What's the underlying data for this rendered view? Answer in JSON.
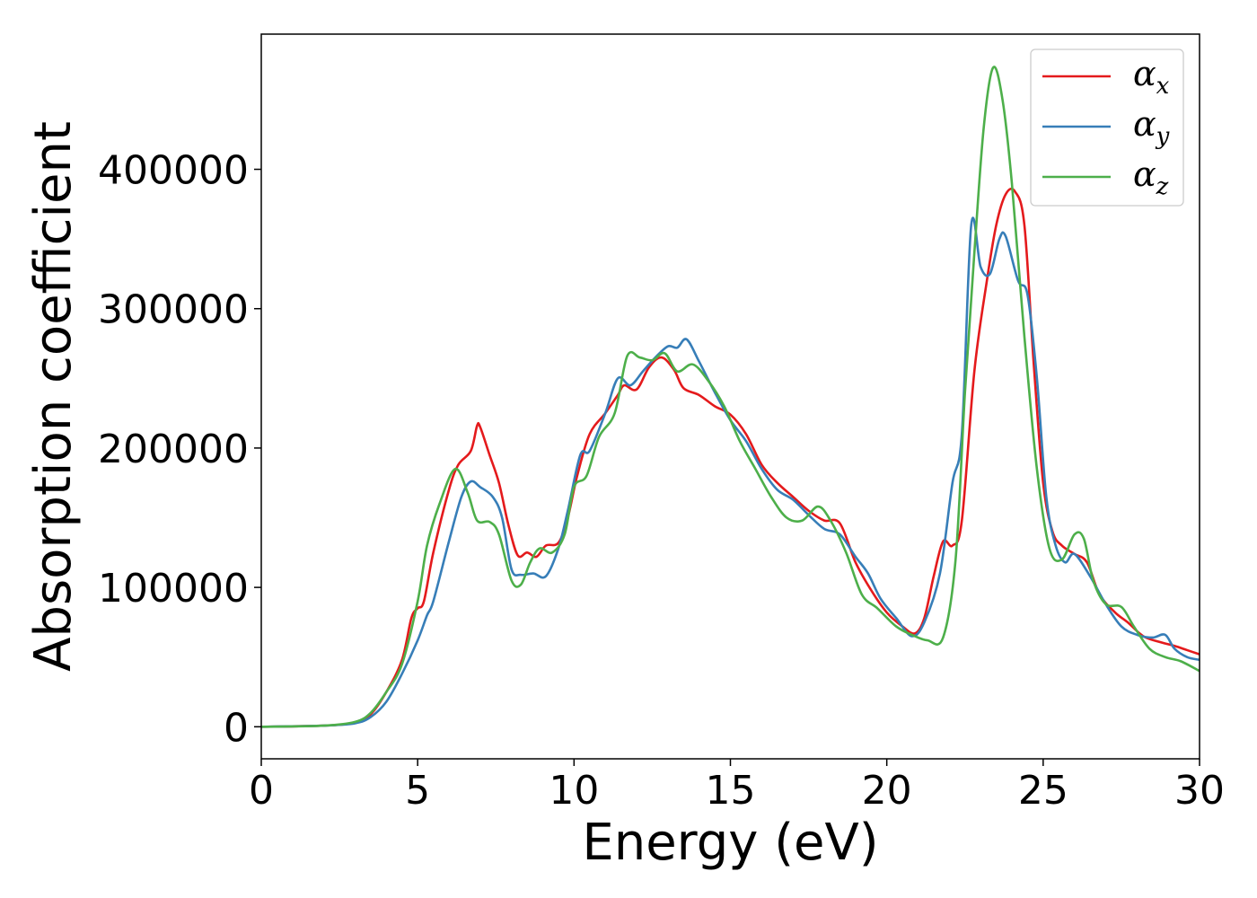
{
  "chart_data": {
    "type": "line",
    "xlabel": "Energy (eV)",
    "ylabel": "Absorption coefficient",
    "xlim": [
      0,
      30
    ],
    "ylim": [
      -23000,
      497000
    ],
    "xticks": [
      0,
      5,
      10,
      15,
      20,
      25,
      30
    ],
    "xtick_labels": [
      "0",
      "5",
      "10",
      "15",
      "20",
      "25",
      "30"
    ],
    "yticks": [
      0,
      100000,
      200000,
      300000,
      400000
    ],
    "ytick_labels": [
      "0",
      "100000",
      "200000",
      "300000",
      "400000"
    ],
    "grid": false,
    "legend_position": "top-right",
    "series": [
      {
        "name": "α",
        "subscript": "x",
        "color": "#e41a1c",
        "points": [
          [
            0,
            0
          ],
          [
            2,
            800
          ],
          [
            3,
            3000
          ],
          [
            3.5,
            9000
          ],
          [
            4,
            25000
          ],
          [
            4.5,
            48000
          ],
          [
            4.8,
            78000
          ],
          [
            5,
            85000
          ],
          [
            5.2,
            90000
          ],
          [
            5.5,
            125000
          ],
          [
            6,
            170000
          ],
          [
            6.3,
            188000
          ],
          [
            6.7,
            198000
          ],
          [
            6.9,
            216000
          ],
          [
            7,
            215000
          ],
          [
            7.3,
            195000
          ],
          [
            7.6,
            175000
          ],
          [
            7.9,
            145000
          ],
          [
            8.2,
            123000
          ],
          [
            8.5,
            125000
          ],
          [
            8.8,
            122000
          ],
          [
            9.1,
            130000
          ],
          [
            9.5,
            132000
          ],
          [
            9.8,
            150000
          ],
          [
            10.1,
            180000
          ],
          [
            10.5,
            210000
          ],
          [
            11,
            225000
          ],
          [
            11.4,
            238000
          ],
          [
            11.6,
            245000
          ],
          [
            12,
            242000
          ],
          [
            12.4,
            258000
          ],
          [
            12.8,
            265000
          ],
          [
            13.2,
            256000
          ],
          [
            13.5,
            243000
          ],
          [
            14,
            238000
          ],
          [
            14.5,
            230000
          ],
          [
            15,
            224000
          ],
          [
            15.5,
            210000
          ],
          [
            16,
            188000
          ],
          [
            16.5,
            175000
          ],
          [
            17,
            165000
          ],
          [
            17.5,
            155000
          ],
          [
            18,
            148000
          ],
          [
            18.5,
            146000
          ],
          [
            19,
            118000
          ],
          [
            19.5,
            98000
          ],
          [
            20,
            82000
          ],
          [
            20.5,
            72000
          ],
          [
            20.9,
            67000
          ],
          [
            21.2,
            78000
          ],
          [
            21.5,
            108000
          ],
          [
            21.8,
            133000
          ],
          [
            22.1,
            130000
          ],
          [
            22.4,
            148000
          ],
          [
            22.8,
            255000
          ],
          [
            23.2,
            320000
          ],
          [
            23.5,
            360000
          ],
          [
            23.8,
            382000
          ],
          [
            24.1,
            384000
          ],
          [
            24.4,
            360000
          ],
          [
            24.7,
            260000
          ],
          [
            25,
            175000
          ],
          [
            25.3,
            140000
          ],
          [
            25.6,
            130000
          ],
          [
            26,
            124000
          ],
          [
            26.4,
            118000
          ],
          [
            26.8,
            95000
          ],
          [
            27.3,
            82000
          ],
          [
            27.7,
            75000
          ],
          [
            28.2,
            65000
          ],
          [
            28.7,
            61000
          ],
          [
            29.2,
            58000
          ],
          [
            29.6,
            55000
          ],
          [
            30,
            52000
          ]
        ]
      },
      {
        "name": "α",
        "subscript": "y",
        "color": "#377eb8",
        "points": [
          [
            0,
            0
          ],
          [
            2,
            800
          ],
          [
            3,
            2500
          ],
          [
            3.5,
            7000
          ],
          [
            4,
            18000
          ],
          [
            4.5,
            38000
          ],
          [
            5,
            62000
          ],
          [
            5.3,
            80000
          ],
          [
            5.5,
            90000
          ],
          [
            6,
            133000
          ],
          [
            6.4,
            165000
          ],
          [
            6.7,
            176000
          ],
          [
            7,
            172000
          ],
          [
            7.4,
            165000
          ],
          [
            7.7,
            150000
          ],
          [
            8,
            113000
          ],
          [
            8.3,
            109000
          ],
          [
            8.7,
            110000
          ],
          [
            9.1,
            108000
          ],
          [
            9.5,
            128000
          ],
          [
            9.8,
            155000
          ],
          [
            10.2,
            195000
          ],
          [
            10.5,
            198000
          ],
          [
            11,
            225000
          ],
          [
            11.4,
            250000
          ],
          [
            11.8,
            245000
          ],
          [
            12.2,
            255000
          ],
          [
            12.6,
            265000
          ],
          [
            13,
            273000
          ],
          [
            13.3,
            272000
          ],
          [
            13.6,
            278000
          ],
          [
            14,
            262000
          ],
          [
            14.5,
            240000
          ],
          [
            15,
            220000
          ],
          [
            15.5,
            205000
          ],
          [
            16,
            185000
          ],
          [
            16.5,
            170000
          ],
          [
            17,
            163000
          ],
          [
            17.5,
            152000
          ],
          [
            18,
            142000
          ],
          [
            18.5,
            138000
          ],
          [
            19,
            122000
          ],
          [
            19.4,
            110000
          ],
          [
            19.8,
            92000
          ],
          [
            20.3,
            78000
          ],
          [
            20.8,
            65000
          ],
          [
            21.2,
            75000
          ],
          [
            21.7,
            110000
          ],
          [
            22.1,
            175000
          ],
          [
            22.4,
            210000
          ],
          [
            22.7,
            360000
          ],
          [
            23,
            330000
          ],
          [
            23.3,
            325000
          ],
          [
            23.6,
            350000
          ],
          [
            23.8,
            352000
          ],
          [
            24.2,
            320000
          ],
          [
            24.5,
            310000
          ],
          [
            24.8,
            250000
          ],
          [
            25.1,
            165000
          ],
          [
            25.4,
            130000
          ],
          [
            25.7,
            118000
          ],
          [
            26,
            124000
          ],
          [
            26.5,
            108000
          ],
          [
            27,
            88000
          ],
          [
            27.5,
            72000
          ],
          [
            28,
            66000
          ],
          [
            28.5,
            64000
          ],
          [
            28.9,
            66000
          ],
          [
            29.2,
            56000
          ],
          [
            29.6,
            50000
          ],
          [
            30,
            48000
          ]
        ]
      },
      {
        "name": "α",
        "subscript": "z",
        "color": "#4daf4a",
        "points": [
          [
            0,
            0
          ],
          [
            2,
            800
          ],
          [
            3,
            3500
          ],
          [
            3.5,
            10000
          ],
          [
            4,
            25000
          ],
          [
            4.5,
            45000
          ],
          [
            5,
            90000
          ],
          [
            5.3,
            130000
          ],
          [
            5.7,
            160000
          ],
          [
            6.2,
            185000
          ],
          [
            6.6,
            168000
          ],
          [
            6.9,
            148000
          ],
          [
            7.3,
            147000
          ],
          [
            7.6,
            138000
          ],
          [
            8,
            105000
          ],
          [
            8.3,
            102000
          ],
          [
            8.6,
            118000
          ],
          [
            8.9,
            128000
          ],
          [
            9.3,
            125000
          ],
          [
            9.7,
            138000
          ],
          [
            10,
            172000
          ],
          [
            10.4,
            180000
          ],
          [
            10.8,
            208000
          ],
          [
            11.3,
            225000
          ],
          [
            11.7,
            266000
          ],
          [
            12.1,
            265000
          ],
          [
            12.5,
            263000
          ],
          [
            12.9,
            268000
          ],
          [
            13.3,
            255000
          ],
          [
            13.8,
            260000
          ],
          [
            14.3,
            248000
          ],
          [
            14.8,
            230000
          ],
          [
            15.3,
            205000
          ],
          [
            15.8,
            185000
          ],
          [
            16.3,
            165000
          ],
          [
            16.8,
            150000
          ],
          [
            17.3,
            148000
          ],
          [
            17.8,
            158000
          ],
          [
            18.2,
            148000
          ],
          [
            18.7,
            125000
          ],
          [
            19.2,
            95000
          ],
          [
            19.7,
            85000
          ],
          [
            20.3,
            72000
          ],
          [
            20.8,
            66000
          ],
          [
            21.3,
            62000
          ],
          [
            21.8,
            64000
          ],
          [
            22.2,
            120000
          ],
          [
            22.5,
            240000
          ],
          [
            22.8,
            340000
          ],
          [
            23.1,
            430000
          ],
          [
            23.4,
            473000
          ],
          [
            23.7,
            450000
          ],
          [
            24,
            390000
          ],
          [
            24.4,
            280000
          ],
          [
            24.8,
            185000
          ],
          [
            25.2,
            128000
          ],
          [
            25.6,
            120000
          ],
          [
            26,
            138000
          ],
          [
            26.3,
            135000
          ],
          [
            26.6,
            105000
          ],
          [
            27,
            88000
          ],
          [
            27.5,
            86000
          ],
          [
            27.9,
            72000
          ],
          [
            28.4,
            56000
          ],
          [
            28.9,
            50000
          ],
          [
            29.4,
            47000
          ],
          [
            30,
            40000
          ]
        ]
      }
    ]
  }
}
